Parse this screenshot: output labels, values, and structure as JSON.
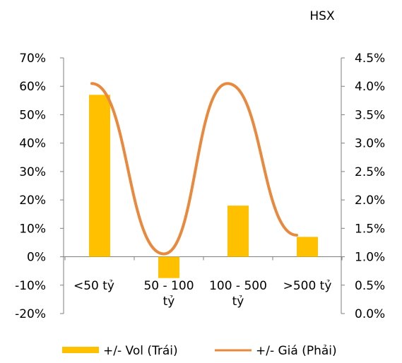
{
  "chart_data": {
    "type": "bar+line",
    "title": "HSX",
    "categories": [
      "<50 tỷ",
      "50 - 100 tỷ",
      "100 - 500 tỷ",
      ">500 tỷ"
    ],
    "category_lines": [
      [
        "<50 tỷ"
      ],
      [
        "50 - 100",
        "tỷ"
      ],
      [
        "100 - 500",
        "tỷ"
      ],
      [
        ">500 tỷ"
      ]
    ],
    "series": [
      {
        "name": "+/- Vol (Trái)",
        "type": "bar",
        "axis": "left",
        "color": "#FFC000",
        "values": [
          57,
          -7.5,
          18,
          7
        ]
      },
      {
        "name": "+/- Giá (Phải)",
        "type": "line",
        "axis": "right",
        "color": "#E8893D",
        "smooth": true,
        "values": [
          4.05,
          1.05,
          4.05,
          1.38
        ]
      }
    ],
    "y_left": {
      "min": -20,
      "max": 70,
      "step": 10,
      "tick_labels": [
        "-20%",
        "-10%",
        "0%",
        "10%",
        "20%",
        "30%",
        "40%",
        "50%",
        "60%",
        "70%"
      ]
    },
    "y_right": {
      "min": 0,
      "max": 4.5,
      "step": 0.5,
      "tick_labels": [
        "0.0%",
        "0.5%",
        "1.0%",
        "1.5%",
        "2.0%",
        "2.5%",
        "3.0%",
        "3.5%",
        "4.0%",
        "4.5%"
      ]
    },
    "legend_position": "bottom",
    "grid": false
  }
}
